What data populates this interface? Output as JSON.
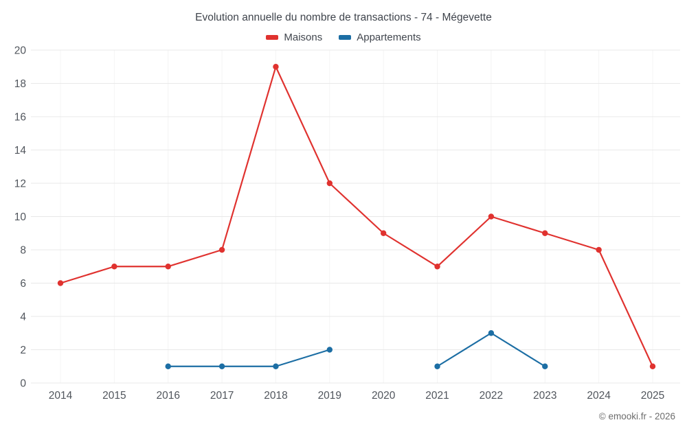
{
  "title": "Evolution annuelle du nombre de transactions - 74 - Mégevette",
  "footer": "© emooki.fr - 2026",
  "colors": {
    "grid": "#e8e8e8",
    "grid_vertical": "#f4f4f4",
    "tick_text": "#50555c",
    "maisons": "#e0322f",
    "appartements": "#1c6ea4"
  },
  "chart_data": {
    "type": "line",
    "title": "Evolution annuelle du nombre de transactions - 74 - Mégevette",
    "categories": [
      "2014",
      "2015",
      "2016",
      "2017",
      "2018",
      "2019",
      "2020",
      "2021",
      "2022",
      "2023",
      "2024",
      "2025"
    ],
    "series": [
      {
        "name": "Maisons",
        "color": "#e0322f",
        "values": [
          6,
          7,
          7,
          8,
          19,
          12,
          9,
          7,
          10,
          9,
          8,
          1
        ]
      },
      {
        "name": "Appartements",
        "color": "#1c6ea4",
        "values": [
          null,
          null,
          1,
          1,
          1,
          2,
          null,
          1,
          3,
          1,
          null,
          null
        ]
      }
    ],
    "ylim": [
      0,
      20
    ],
    "ytick_step": 2,
    "xlabel": "",
    "ylabel": "",
    "grid": "on",
    "legend_position": "top"
  }
}
